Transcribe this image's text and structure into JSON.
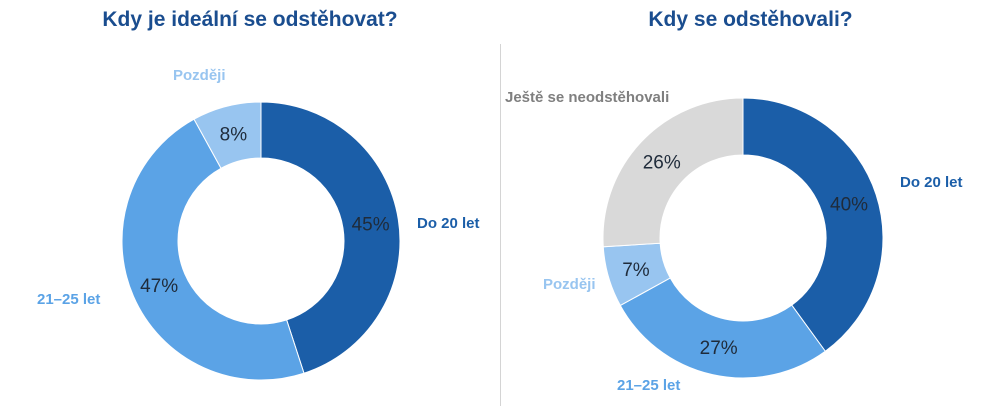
{
  "chart_data": [
    {
      "type": "pie",
      "title": "Kdy je ideální se odstěhovat?",
      "slices": [
        {
          "label": "Do 20 let",
          "value": 45,
          "value_label": "45%",
          "color": "#1b5ea8",
          "label_color": "#1b5ea8"
        },
        {
          "label": "21–25 let",
          "value": 47,
          "value_label": "47%",
          "color": "#5ba3e6",
          "label_color": "#5ba3e6"
        },
        {
          "label": "Později",
          "value": 8,
          "value_label": "8%",
          "color": "#98c5f0",
          "label_color": "#98c5f0"
        }
      ]
    },
    {
      "type": "pie",
      "title": "Kdy se odstěhovali?",
      "slices": [
        {
          "label": "Do 20 let",
          "value": 40,
          "value_label": "40%",
          "color": "#1b5ea8",
          "label_color": "#1b5ea8"
        },
        {
          "label": "21–25 let",
          "value": 27,
          "value_label": "27%",
          "color": "#5ba3e6",
          "label_color": "#5ba3e6"
        },
        {
          "label": "Později",
          "value": 7,
          "value_label": "7%",
          "color": "#98c5f0",
          "label_color": "#98c5f0"
        },
        {
          "label": "Ještě se neodstěhovali",
          "value": 26,
          "value_label": "26%",
          "color": "#d9d9d9",
          "label_color": "#7f7f7f"
        }
      ]
    }
  ]
}
